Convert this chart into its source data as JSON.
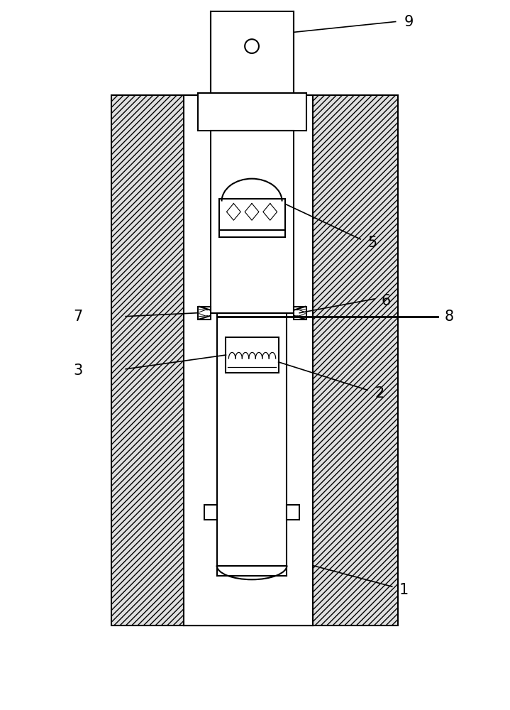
{
  "bg_color": "#ffffff",
  "line_color": "#000000",
  "hatch_color": "#555555",
  "label_fontsize": 15,
  "figsize": [
    7.19,
    10.0
  ],
  "dpi": 100
}
